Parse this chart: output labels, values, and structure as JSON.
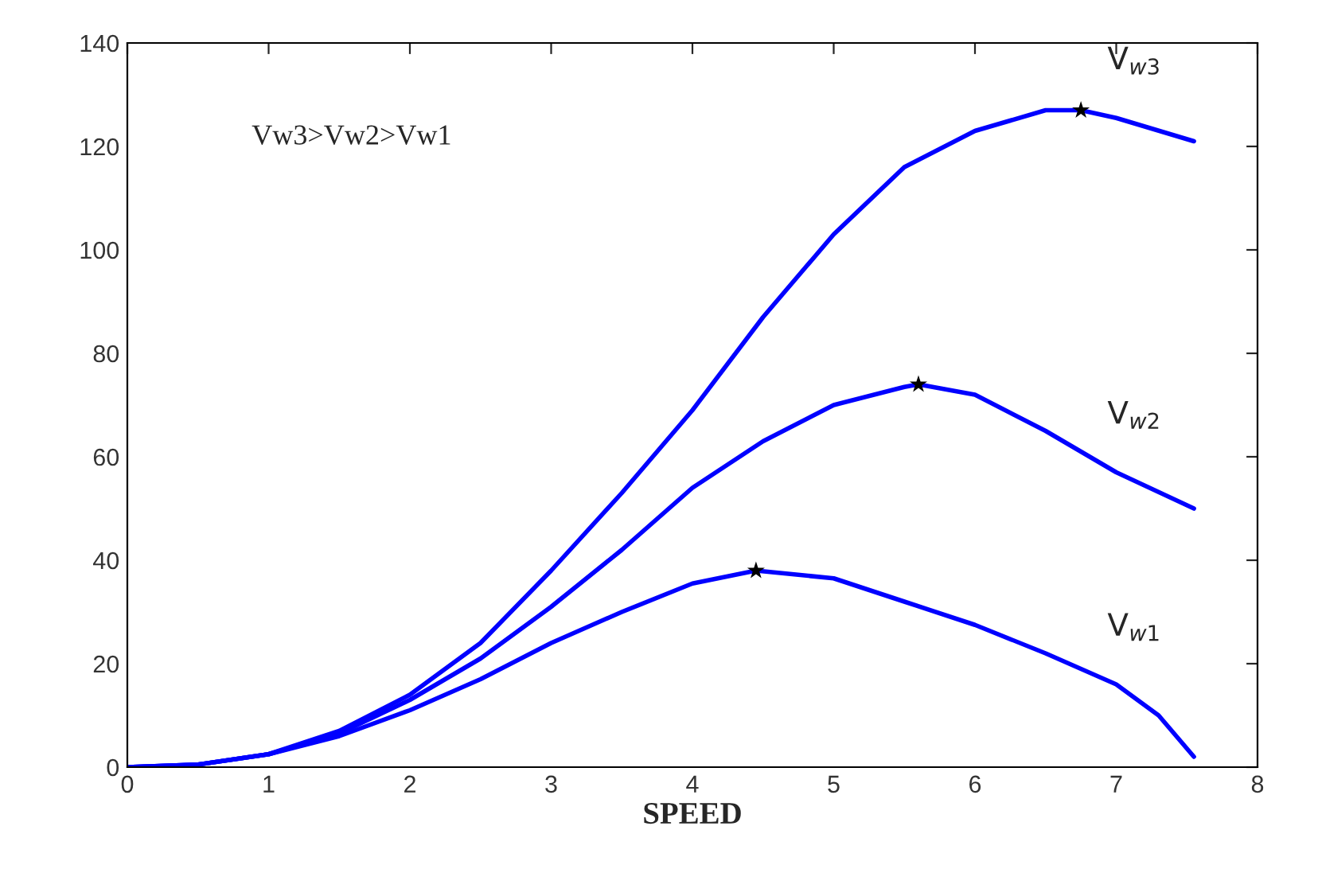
{
  "chart_data": {
    "type": "line",
    "xlabel": "SPEED",
    "xlim": [
      0,
      8
    ],
    "ylim": [
      0,
      140
    ],
    "xticks": [
      0,
      1,
      2,
      3,
      4,
      5,
      6,
      7,
      8
    ],
    "yticks": [
      0,
      20,
      40,
      60,
      80,
      100,
      120,
      140
    ],
    "grid": false,
    "legend": false,
    "line_style": "solid",
    "marker": "none",
    "annotations": [
      "Vw3>Vw2>Vw1"
    ],
    "series": [
      {
        "name": "V$_{w1}$",
        "color": "#0000ff",
        "x": [
          0,
          0.5,
          1,
          1.5,
          2,
          2.5,
          3,
          3.5,
          4,
          4.45,
          5,
          5.5,
          6,
          6.5,
          7,
          7.3,
          7.55
        ],
        "values": [
          0,
          0.5,
          2.5,
          6,
          11,
          17,
          24,
          30,
          35.5,
          38,
          36.5,
          32,
          27.5,
          22,
          16,
          10,
          2
        ]
      },
      {
        "name": "V$_{w2}$",
        "color": "#0000ff",
        "x": [
          0,
          0.5,
          1,
          1.5,
          2,
          2.5,
          3,
          3.5,
          4,
          4.5,
          5,
          5.5,
          5.6,
          6,
          6.5,
          7,
          7.55
        ],
        "values": [
          0,
          0.5,
          2.5,
          6.5,
          13,
          21,
          31,
          42,
          54,
          63,
          70,
          73.5,
          74,
          72,
          65,
          57,
          50
        ]
      },
      {
        "name": "V$_{w3}$",
        "color": "#0000ff",
        "x": [
          0,
          0.5,
          1,
          1.5,
          2,
          2.5,
          3,
          3.5,
          4,
          4.5,
          5,
          5.5,
          6,
          6.5,
          6.75,
          7,
          7.55
        ],
        "values": [
          0,
          0.5,
          2.5,
          7,
          14,
          24,
          38,
          53,
          69,
          87,
          103,
          116,
          123,
          127,
          127,
          125.5,
          121
        ]
      },
      {
        "type": "scatter",
        "marker": "star",
        "color": "#000000",
        "x": [
          4.45,
          5.6,
          6.75
        ],
        "values": [
          38,
          74,
          127
        ]
      }
    ]
  }
}
